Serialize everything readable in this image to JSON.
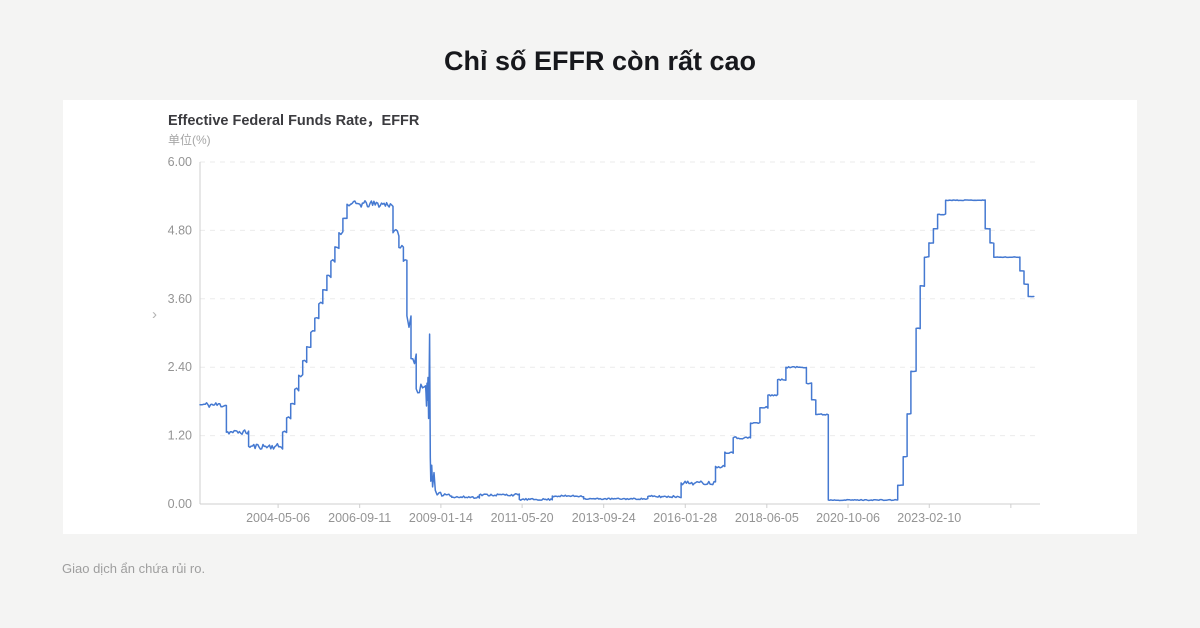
{
  "page": {
    "title": "Chỉ số EFFR còn rất cao",
    "disclaimer": "Giao dịch ẩn chứa rủi ro."
  },
  "chart": {
    "title": "Effective Federal Funds Rate，EFFR",
    "unit_label": "单位(%)",
    "chevron": "›"
  },
  "colors": {
    "page_bg": "#f4f4f3",
    "card_bg": "#ffffff",
    "line": "#4579d1",
    "grid": "#ebebeb",
    "axis": "#cfcfcf",
    "tick_text": "#949494",
    "title_text": "#17181c",
    "chart_title_text": "#3b3b3f",
    "unit_text": "#a6a6a6",
    "disclaimer_text": "#9e9e9e"
  },
  "chart_data": {
    "type": "line",
    "title": "Effective Federal Funds Rate，EFFR",
    "ylabel": "单位(%)",
    "ylim": [
      0,
      6
    ],
    "trange": [
      2002.1,
      2026.3
    ],
    "grid": "dashed-horizontal",
    "legend": "none",
    "yticks": [
      {
        "label": "6.00",
        "v": 6.0
      },
      {
        "label": "4.80",
        "v": 4.8
      },
      {
        "label": "3.60",
        "v": 3.6
      },
      {
        "label": "2.40",
        "v": 2.4
      },
      {
        "label": "1.20",
        "v": 1.2
      },
      {
        "label": "0.00",
        "v": 0.0
      }
    ],
    "xticks": [
      {
        "label": "2004-05-06",
        "t": 2004.35
      },
      {
        "label": "2006-09-11",
        "t": 2006.7
      },
      {
        "label": "2009-01-14",
        "t": 2009.04
      },
      {
        "label": "2011-05-20",
        "t": 2011.38
      },
      {
        "label": "2013-09-24",
        "t": 2013.73
      },
      {
        "label": "2016-01-28",
        "t": 2016.08
      },
      {
        "label": "2018-06-05",
        "t": 2018.43
      },
      {
        "label": "2020-10-06",
        "t": 2020.77
      },
      {
        "label": "2023-02-10",
        "t": 2023.11
      },
      {
        "label": "",
        "t": 2025.46
      }
    ],
    "series": [
      {
        "name": "EFFR",
        "color": "#4579d1",
        "segments": [
          {
            "a": 2002.1,
            "b": 2002.86,
            "v": 1.74,
            "n": 0.05
          },
          {
            "a": 2002.86,
            "b": 2003.5,
            "v": 1.26,
            "n": 0.04
          },
          {
            "a": 2003.5,
            "b": 2004.48,
            "v": 1.01,
            "n": 0.05
          },
          {
            "stair": true,
            "a": 2004.48,
            "b": 2006.45,
            "v0": 1.01,
            "v1": 5.26,
            "steps": 17,
            "n": 0.035
          },
          {
            "a": 2006.45,
            "b": 2007.66,
            "v": 5.26,
            "n": 0.06
          },
          {
            "a": 2007.66,
            "b": 2007.83,
            "v": 4.76,
            "n": 0.06
          },
          {
            "a": 2007.83,
            "b": 2007.96,
            "v": 4.5,
            "n": 0.05
          },
          {
            "a": 2007.96,
            "b": 2008.06,
            "v": 4.26,
            "n": 0.06
          },
          {
            "a": 2008.06,
            "b": 2008.18,
            "v": 3.3,
            "n": 0.2
          },
          {
            "a": 2008.18,
            "b": 2008.33,
            "v": 2.55,
            "n": 0.13
          },
          {
            "a": 2008.33,
            "b": 2008.6,
            "v": 2.02,
            "n": 0.08
          },
          {
            "pts": [
              [
                2008.61,
                1.95
              ],
              [
                2008.625,
                1.72
              ],
              [
                2008.64,
                2.12
              ],
              [
                2008.655,
                1.82
              ],
              [
                2008.67,
                2.22
              ],
              [
                2008.685,
                1.5
              ],
              [
                2008.7,
                2.1
              ],
              [
                2008.715,
                2.98
              ],
              [
                2008.725,
                1.75
              ],
              [
                2008.735,
                0.82
              ],
              [
                2008.75,
                0.4
              ],
              [
                2008.775,
                0.68
              ],
              [
                2008.8,
                0.3
              ],
              [
                2008.84,
                0.55
              ],
              [
                2008.88,
                0.24
              ],
              [
                2008.93,
                0.16
              ]
            ]
          },
          {
            "a": 2008.95,
            "b": 2009.35,
            "v": 0.17,
            "n": 0.035
          },
          {
            "a": 2009.35,
            "b": 2010.15,
            "v": 0.12,
            "n": 0.02
          },
          {
            "a": 2010.15,
            "b": 2011.3,
            "v": 0.16,
            "n": 0.02
          },
          {
            "a": 2011.3,
            "b": 2012.25,
            "v": 0.08,
            "n": 0.015
          },
          {
            "a": 2012.25,
            "b": 2013.15,
            "v": 0.14,
            "n": 0.015
          },
          {
            "a": 2013.15,
            "b": 2015.0,
            "v": 0.09,
            "n": 0.012
          },
          {
            "a": 2015.0,
            "b": 2015.96,
            "v": 0.13,
            "n": 0.02
          },
          {
            "a": 2015.96,
            "b": 2016.95,
            "v": 0.37,
            "n": 0.035
          },
          {
            "a": 2016.95,
            "b": 2017.22,
            "v": 0.66,
            "n": 0.025
          },
          {
            "a": 2017.22,
            "b": 2017.46,
            "v": 0.91,
            "n": 0.02
          },
          {
            "a": 2017.46,
            "b": 2017.96,
            "v": 1.16,
            "n": 0.02
          },
          {
            "a": 2017.96,
            "b": 2018.23,
            "v": 1.42,
            "n": 0.02
          },
          {
            "a": 2018.23,
            "b": 2018.46,
            "v": 1.69,
            "n": 0.02
          },
          {
            "a": 2018.46,
            "b": 2018.74,
            "v": 1.91,
            "n": 0.015
          },
          {
            "a": 2018.74,
            "b": 2018.98,
            "v": 2.18,
            "n": 0.015
          },
          {
            "a": 2018.98,
            "b": 2019.57,
            "v": 2.4,
            "n": 0.012
          },
          {
            "a": 2019.57,
            "b": 2019.72,
            "v": 2.12,
            "n": 0.012
          },
          {
            "a": 2019.72,
            "b": 2019.84,
            "v": 1.83,
            "n": 0.012
          },
          {
            "a": 2019.84,
            "b": 2020.2,
            "v": 1.57,
            "n": 0.012
          },
          {
            "a": 2020.2,
            "b": 2022.2,
            "v": 0.07,
            "n": 0.008
          },
          {
            "a": 2022.2,
            "b": 2022.36,
            "v": 0.33,
            "n": 0.006
          },
          {
            "a": 2022.36,
            "b": 2022.47,
            "v": 0.83,
            "n": 0.006
          },
          {
            "a": 2022.47,
            "b": 2022.58,
            "v": 1.58,
            "n": 0.006
          },
          {
            "a": 2022.58,
            "b": 2022.73,
            "v": 2.33,
            "n": 0.008
          },
          {
            "a": 2022.73,
            "b": 2022.85,
            "v": 3.08,
            "n": 0.01
          },
          {
            "a": 2022.85,
            "b": 2022.97,
            "v": 3.83,
            "n": 0.01
          },
          {
            "a": 2022.97,
            "b": 2023.1,
            "v": 4.33,
            "n": 0.008
          },
          {
            "a": 2023.1,
            "b": 2023.23,
            "v": 4.58,
            "n": 0.008
          },
          {
            "a": 2023.23,
            "b": 2023.35,
            "v": 4.83,
            "n": 0.008
          },
          {
            "a": 2023.35,
            "b": 2023.58,
            "v": 5.08,
            "n": 0.008
          },
          {
            "a": 2023.58,
            "b": 2024.72,
            "v": 5.33,
            "n": 0.005
          },
          {
            "a": 2024.72,
            "b": 2024.86,
            "v": 4.83,
            "n": 0.005
          },
          {
            "a": 2024.86,
            "b": 2024.97,
            "v": 4.58,
            "n": 0.005
          },
          {
            "a": 2024.97,
            "b": 2025.72,
            "v": 4.33,
            "n": 0.005
          },
          {
            "a": 2025.72,
            "b": 2025.84,
            "v": 4.09,
            "n": 0.005
          },
          {
            "a": 2025.84,
            "b": 2025.96,
            "v": 3.86,
            "n": 0.005
          },
          {
            "a": 2025.96,
            "b": 2026.12,
            "v": 3.64,
            "n": 0.003
          }
        ]
      }
    ]
  }
}
